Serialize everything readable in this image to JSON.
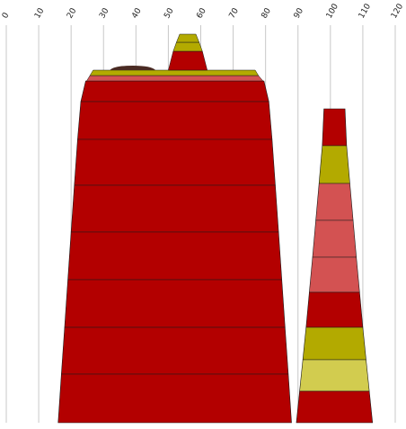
{
  "chart_data": {
    "type": "area",
    "title": "",
    "xlabel": "",
    "ylabel": "",
    "xlim": [
      0,
      120
    ],
    "x_ticks": [
      "0",
      "10",
      "20",
      "30",
      "40",
      "50",
      "60",
      "70",
      "80",
      "90",
      "100",
      "110",
      "120"
    ],
    "grid": "vertical",
    "colors": {
      "dark_red": "#b30000",
      "olive": "#b3aa00",
      "light_olive": "#d2cc4f",
      "salmon": "#d35252",
      "dark_brown": "#4a2b23",
      "gridline": "#c8c8c8",
      "band_line": "#1a1a1a"
    },
    "shapes": [
      {
        "name": "tall-stepped-stack",
        "bands": [
          {
            "color": "dark_red",
            "top": [
              24.5,
              79.5
            ],
            "bottom": [
              23.0,
              81.0
            ]
          },
          {
            "color": "dark_red",
            "top": [
              23.0,
              81.0
            ],
            "bottom": [
              22.0,
              82.0
            ]
          },
          {
            "color": "dark_red",
            "top": [
              22.0,
              82.0
            ],
            "bottom": [
              21.0,
              83.0
            ]
          },
          {
            "color": "dark_red",
            "top": [
              21.0,
              83.0
            ],
            "bottom": [
              20.0,
              84.0
            ]
          },
          {
            "color": "dark_red",
            "top": [
              20.0,
              84.0
            ],
            "bottom": [
              19.0,
              85.0
            ]
          },
          {
            "color": "dark_red",
            "top": [
              19.0,
              85.0
            ],
            "bottom": [
              18.0,
              86.0
            ]
          },
          {
            "color": "dark_red",
            "top": [
              18.0,
              86.0
            ],
            "bottom": [
              17.0,
              87.0
            ]
          },
          {
            "color": "dark_red",
            "top": [
              17.0,
              87.0
            ],
            "bottom": [
              16.0,
              88.0
            ]
          }
        ],
        "caps": [
          {
            "color": "salmon",
            "top": [
              25.8,
              77.8
            ],
            "bottom": [
              24.8,
              79.2
            ]
          },
          {
            "color": "olive",
            "top": [
              26.8,
              76.8
            ],
            "bottom": [
              25.8,
              77.8
            ]
          },
          {
            "color": "dark_red",
            "top": [
              50.0,
              62.0
            ],
            "bottom": [
              50.0,
              62.0
            ],
            "note": "peak base"
          },
          {
            "color": "dark_red",
            "top": [
              51.5,
              60.5
            ],
            "bottom": [
              50.0,
              62.0
            ]
          },
          {
            "color": "olive",
            "top": [
              52.5,
              59.5
            ],
            "bottom": [
              51.5,
              60.5
            ]
          },
          {
            "color": "olive",
            "top": [
              53.5,
              58.5
            ],
            "bottom": [
              52.5,
              59.5
            ]
          }
        ],
        "mound": {
          "color": "dark_brown",
          "x": [
            32,
            46
          ]
        }
      },
      {
        "name": "short-stepped-stack",
        "bands": [
          {
            "color": "dark_red",
            "top": [
              98.0,
              104.5
            ],
            "bottom": [
              97.5,
              105.0
            ]
          },
          {
            "color": "olive",
            "top": [
              97.5,
              105.0
            ],
            "bottom": [
              96.5,
              106.0
            ]
          },
          {
            "color": "salmon",
            "top": [
              96.5,
              106.0
            ],
            "bottom": [
              95.5,
              107.0
            ]
          },
          {
            "color": "salmon",
            "top": [
              95.5,
              107.0
            ],
            "bottom": [
              94.5,
              108.0
            ]
          },
          {
            "color": "salmon",
            "top": [
              94.5,
              108.0
            ],
            "bottom": [
              93.5,
              109.0
            ]
          },
          {
            "color": "dark_red",
            "top": [
              93.5,
              109.0
            ],
            "bottom": [
              92.5,
              110.0
            ]
          },
          {
            "color": "olive",
            "top": [
              92.5,
              110.0
            ],
            "bottom": [
              91.5,
              111.0
            ]
          },
          {
            "color": "light_olive",
            "top": [
              91.5,
              111.0
            ],
            "bottom": [
              90.5,
              112.0
            ]
          },
          {
            "color": "dark_red",
            "top": [
              90.5,
              112.0
            ],
            "bottom": [
              89.5,
              113.0
            ]
          }
        ]
      }
    ]
  }
}
